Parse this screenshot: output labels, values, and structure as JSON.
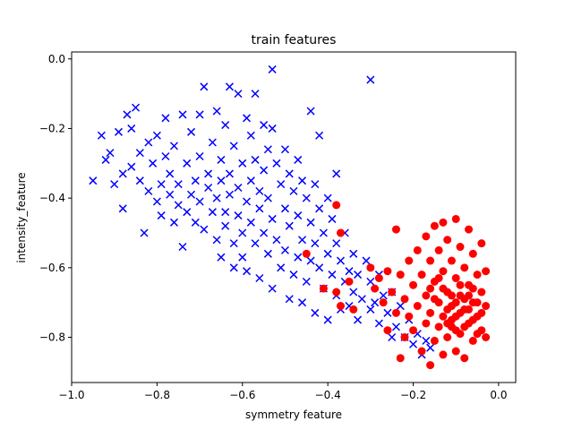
{
  "chart_data": {
    "type": "scatter",
    "title": "train features",
    "xlabel": "symmetry feature",
    "ylabel": "intensity_feature",
    "xlim": [
      -1.0,
      0.04
    ],
    "ylim": [
      -0.93,
      0.02
    ],
    "xticks": [
      -1.0,
      -0.8,
      -0.6,
      -0.4,
      -0.2,
      0.0
    ],
    "xtick_labels": [
      "−1.0",
      "−0.8",
      "−0.6",
      "−0.4",
      "−0.2",
      "0.0"
    ],
    "yticks": [
      0.0,
      -0.2,
      -0.4,
      -0.6,
      -0.8
    ],
    "ytick_labels": [
      "0.0",
      "−0.2",
      "−0.4",
      "−0.6",
      "−0.8"
    ],
    "grid": false,
    "series": [
      {
        "marker": "x",
        "color": "#0000ff",
        "points": [
          [
            -0.95,
            -0.35
          ],
          [
            -0.93,
            -0.22
          ],
          [
            -0.92,
            -0.29
          ],
          [
            -0.91,
            -0.27
          ],
          [
            -0.9,
            -0.36
          ],
          [
            -0.89,
            -0.21
          ],
          [
            -0.88,
            -0.33
          ],
          [
            -0.88,
            -0.43
          ],
          [
            -0.87,
            -0.16
          ],
          [
            -0.86,
            -0.2
          ],
          [
            -0.86,
            -0.31
          ],
          [
            -0.85,
            -0.14
          ],
          [
            -0.84,
            -0.27
          ],
          [
            -0.84,
            -0.35
          ],
          [
            -0.83,
            -0.5
          ],
          [
            -0.82,
            -0.24
          ],
          [
            -0.82,
            -0.38
          ],
          [
            -0.81,
            -0.3
          ],
          [
            -0.8,
            -0.22
          ],
          [
            -0.8,
            -0.41
          ],
          [
            -0.79,
            -0.36
          ],
          [
            -0.79,
            -0.45
          ],
          [
            -0.78,
            -0.17
          ],
          [
            -0.78,
            -0.28
          ],
          [
            -0.77,
            -0.33
          ],
          [
            -0.77,
            -0.39
          ],
          [
            -0.76,
            -0.25
          ],
          [
            -0.76,
            -0.47
          ],
          [
            -0.75,
            -0.36
          ],
          [
            -0.75,
            -0.42
          ],
          [
            -0.74,
            -0.16
          ],
          [
            -0.74,
            -0.54
          ],
          [
            -0.73,
            -0.3
          ],
          [
            -0.73,
            -0.44
          ],
          [
            -0.72,
            -0.21
          ],
          [
            -0.72,
            -0.39
          ],
          [
            -0.71,
            -0.35
          ],
          [
            -0.71,
            -0.47
          ],
          [
            -0.7,
            -0.16
          ],
          [
            -0.7,
            -0.28
          ],
          [
            -0.7,
            -0.41
          ],
          [
            -0.69,
            -0.08
          ],
          [
            -0.69,
            -0.49
          ],
          [
            -0.68,
            -0.33
          ],
          [
            -0.68,
            -0.37
          ],
          [
            -0.67,
            -0.24
          ],
          [
            -0.67,
            -0.44
          ],
          [
            -0.66,
            -0.15
          ],
          [
            -0.66,
            -0.4
          ],
          [
            -0.66,
            -0.52
          ],
          [
            -0.65,
            -0.29
          ],
          [
            -0.65,
            -0.35
          ],
          [
            -0.65,
            -0.57
          ],
          [
            -0.64,
            -0.19
          ],
          [
            -0.64,
            -0.44
          ],
          [
            -0.64,
            -0.48
          ],
          [
            -0.63,
            -0.08
          ],
          [
            -0.63,
            -0.33
          ],
          [
            -0.63,
            -0.39
          ],
          [
            -0.62,
            -0.25
          ],
          [
            -0.62,
            -0.53
          ],
          [
            -0.62,
            -0.6
          ],
          [
            -0.61,
            -0.1
          ],
          [
            -0.61,
            -0.37
          ],
          [
            -0.61,
            -0.45
          ],
          [
            -0.6,
            -0.3
          ],
          [
            -0.6,
            -0.5
          ],
          [
            -0.6,
            -0.57
          ],
          [
            -0.59,
            -0.17
          ],
          [
            -0.59,
            -0.41
          ],
          [
            -0.59,
            -0.61
          ],
          [
            -0.58,
            -0.22
          ],
          [
            -0.58,
            -0.35
          ],
          [
            -0.58,
            -0.47
          ],
          [
            -0.57,
            -0.1
          ],
          [
            -0.57,
            -0.29
          ],
          [
            -0.57,
            -0.53
          ],
          [
            -0.56,
            -0.38
          ],
          [
            -0.56,
            -0.43
          ],
          [
            -0.56,
            -0.63
          ],
          [
            -0.55,
            -0.19
          ],
          [
            -0.55,
            -0.32
          ],
          [
            -0.55,
            -0.5
          ],
          [
            -0.54,
            -0.26
          ],
          [
            -0.54,
            -0.4
          ],
          [
            -0.54,
            -0.56
          ],
          [
            -0.53,
            -0.03
          ],
          [
            -0.53,
            -0.2
          ],
          [
            -0.53,
            -0.46
          ],
          [
            -0.53,
            -0.66
          ],
          [
            -0.52,
            -0.3
          ],
          [
            -0.52,
            -0.52
          ],
          [
            -0.51,
            -0.36
          ],
          [
            -0.51,
            -0.6
          ],
          [
            -0.5,
            -0.26
          ],
          [
            -0.5,
            -0.43
          ],
          [
            -0.5,
            -0.55
          ],
          [
            -0.49,
            -0.33
          ],
          [
            -0.49,
            -0.48
          ],
          [
            -0.49,
            -0.69
          ],
          [
            -0.48,
            -0.38
          ],
          [
            -0.48,
            -0.62
          ],
          [
            -0.47,
            -0.29
          ],
          [
            -0.47,
            -0.45
          ],
          [
            -0.47,
            -0.57
          ],
          [
            -0.46,
            -0.35
          ],
          [
            -0.46,
            -0.52
          ],
          [
            -0.46,
            -0.7
          ],
          [
            -0.45,
            -0.4
          ],
          [
            -0.45,
            -0.64
          ],
          [
            -0.44,
            -0.15
          ],
          [
            -0.44,
            -0.47
          ],
          [
            -0.44,
            -0.58
          ],
          [
            -0.43,
            -0.36
          ],
          [
            -0.43,
            -0.53
          ],
          [
            -0.43,
            -0.73
          ],
          [
            -0.42,
            -0.22
          ],
          [
            -0.42,
            -0.43
          ],
          [
            -0.42,
            -0.6
          ],
          [
            -0.41,
            -0.5
          ],
          [
            -0.41,
            -0.66
          ],
          [
            -0.4,
            -0.4
          ],
          [
            -0.4,
            -0.56
          ],
          [
            -0.4,
            -0.75
          ],
          [
            -0.39,
            -0.46
          ],
          [
            -0.39,
            -0.62
          ],
          [
            -0.38,
            -0.33
          ],
          [
            -0.38,
            -0.53
          ],
          [
            -0.38,
            -0.68
          ],
          [
            -0.37,
            -0.58
          ],
          [
            -0.37,
            -0.72
          ],
          [
            -0.36,
            -0.5
          ],
          [
            -0.36,
            -0.64
          ],
          [
            -0.35,
            -0.61
          ],
          [
            -0.35,
            -0.71
          ],
          [
            -0.34,
            -0.56
          ],
          [
            -0.34,
            -0.67
          ],
          [
            -0.33,
            -0.62
          ],
          [
            -0.33,
            -0.75
          ],
          [
            -0.32,
            -0.69
          ],
          [
            -0.31,
            -0.58
          ],
          [
            -0.3,
            -0.64
          ],
          [
            -0.3,
            -0.72
          ],
          [
            -0.3,
            -0.06
          ],
          [
            -0.29,
            -0.7
          ],
          [
            -0.28,
            -0.62
          ],
          [
            -0.28,
            -0.76
          ],
          [
            -0.27,
            -0.68
          ],
          [
            -0.26,
            -0.73
          ],
          [
            -0.25,
            -0.67
          ],
          [
            -0.25,
            -0.8
          ],
          [
            -0.24,
            -0.77
          ],
          [
            -0.23,
            -0.71
          ],
          [
            -0.22,
            -0.8
          ],
          [
            -0.21,
            -0.75
          ],
          [
            -0.2,
            -0.82
          ],
          [
            -0.19,
            -0.79
          ],
          [
            -0.18,
            -0.85
          ],
          [
            -0.17,
            -0.81
          ],
          [
            -0.16,
            -0.83
          ]
        ]
      },
      {
        "marker": "o",
        "color": "#ff0000",
        "points": [
          [
            -0.45,
            -0.56
          ],
          [
            -0.41,
            -0.66
          ],
          [
            -0.38,
            -0.42
          ],
          [
            -0.37,
            -0.5
          ],
          [
            -0.38,
            -0.67
          ],
          [
            -0.37,
            -0.71
          ],
          [
            -0.35,
            -0.64
          ],
          [
            -0.34,
            -0.72
          ],
          [
            -0.3,
            -0.6
          ],
          [
            -0.29,
            -0.66
          ],
          [
            -0.28,
            -0.63
          ],
          [
            -0.27,
            -0.7
          ],
          [
            -0.26,
            -0.61
          ],
          [
            -0.26,
            -0.78
          ],
          [
            -0.25,
            -0.67
          ],
          [
            -0.24,
            -0.73
          ],
          [
            -0.24,
            -0.49
          ],
          [
            -0.23,
            -0.62
          ],
          [
            -0.23,
            -0.86
          ],
          [
            -0.22,
            -0.69
          ],
          [
            -0.22,
            -0.8
          ],
          [
            -0.21,
            -0.58
          ],
          [
            -0.21,
            -0.74
          ],
          [
            -0.2,
            -0.65
          ],
          [
            -0.2,
            -0.78
          ],
          [
            -0.19,
            -0.55
          ],
          [
            -0.19,
            -0.71
          ],
          [
            -0.18,
            -0.62
          ],
          [
            -0.18,
            -0.84
          ],
          [
            -0.17,
            -0.51
          ],
          [
            -0.17,
            -0.68
          ],
          [
            -0.17,
            -0.76
          ],
          [
            -0.16,
            -0.58
          ],
          [
            -0.16,
            -0.73
          ],
          [
            -0.16,
            -0.88
          ],
          [
            -0.15,
            -0.48
          ],
          [
            -0.15,
            -0.64
          ],
          [
            -0.15,
            -0.81
          ],
          [
            -0.14,
            -0.55
          ],
          [
            -0.14,
            -0.7
          ],
          [
            -0.14,
            -0.77
          ],
          [
            -0.13,
            -0.47
          ],
          [
            -0.13,
            -0.61
          ],
          [
            -0.13,
            -0.74
          ],
          [
            -0.13,
            -0.85
          ],
          [
            -0.12,
            -0.52
          ],
          [
            -0.12,
            -0.67
          ],
          [
            -0.12,
            -0.8
          ],
          [
            -0.11,
            -0.58
          ],
          [
            -0.11,
            -0.71
          ],
          [
            -0.11,
            -0.77
          ],
          [
            -0.1,
            -0.46
          ],
          [
            -0.1,
            -0.63
          ],
          [
            -0.1,
            -0.74
          ],
          [
            -0.1,
            -0.84
          ],
          [
            -0.09,
            -0.54
          ],
          [
            -0.09,
            -0.68
          ],
          [
            -0.09,
            -0.79
          ],
          [
            -0.08,
            -0.6
          ],
          [
            -0.08,
            -0.72
          ],
          [
            -0.08,
            -0.86
          ],
          [
            -0.07,
            -0.49
          ],
          [
            -0.07,
            -0.65
          ],
          [
            -0.07,
            -0.76
          ],
          [
            -0.06,
            -0.56
          ],
          [
            -0.06,
            -0.7
          ],
          [
            -0.06,
            -0.81
          ],
          [
            -0.05,
            -0.62
          ],
          [
            -0.05,
            -0.74
          ],
          [
            -0.04,
            -0.53
          ],
          [
            -0.04,
            -0.67
          ],
          [
            -0.04,
            -0.78
          ],
          [
            -0.03,
            -0.71
          ],
          [
            -0.03,
            -0.8
          ],
          [
            -0.03,
            -0.61
          ],
          [
            -0.12,
            -0.72
          ],
          [
            -0.11,
            -0.68
          ],
          [
            -0.1,
            -0.7
          ],
          [
            -0.09,
            -0.73
          ],
          [
            -0.08,
            -0.69
          ],
          [
            -0.07,
            -0.72
          ],
          [
            -0.06,
            -0.75
          ],
          [
            -0.05,
            -0.7
          ],
          [
            -0.13,
            -0.66
          ],
          [
            -0.14,
            -0.63
          ],
          [
            -0.09,
            -0.65
          ],
          [
            -0.08,
            -0.77
          ],
          [
            -0.11,
            -0.75
          ],
          [
            -0.07,
            -0.68
          ],
          [
            -0.06,
            -0.66
          ],
          [
            -0.12,
            -0.76
          ],
          [
            -0.1,
            -0.78
          ],
          [
            -0.15,
            -0.69
          ],
          [
            -0.05,
            -0.79
          ],
          [
            -0.04,
            -0.73
          ],
          [
            -0.16,
            -0.66
          ]
        ]
      }
    ]
  }
}
